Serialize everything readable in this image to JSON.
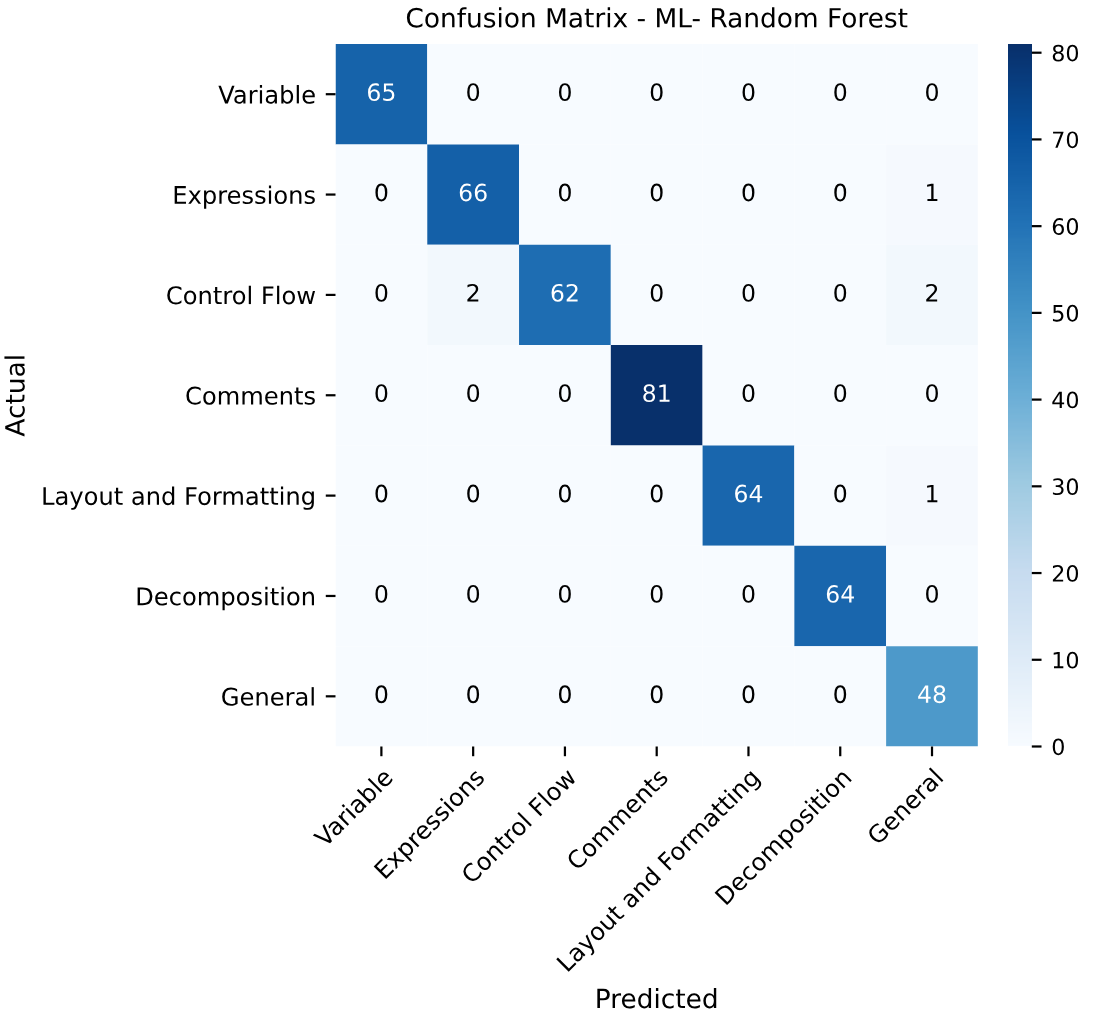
{
  "chart_data": {
    "type": "heatmap",
    "title": "Confusion Matrix - ML- Random Forest",
    "xlabel": "Predicted",
    "ylabel": "Actual",
    "categories": [
      "Variable",
      "Expressions",
      "Control Flow",
      "Comments",
      "Layout and Formatting",
      "Decomposition",
      "General"
    ],
    "y_categories": [
      "Variable",
      "Expressions",
      "Control Flow",
      "Comments",
      "Layout and Formatting",
      "Decomposition",
      "General"
    ],
    "cells": [
      [
        65,
        0,
        0,
        0,
        0,
        0,
        0
      ],
      [
        0,
        66,
        0,
        0,
        0,
        0,
        1
      ],
      [
        0,
        2,
        62,
        0,
        0,
        0,
        2
      ],
      [
        0,
        0,
        0,
        81,
        0,
        0,
        0
      ],
      [
        0,
        0,
        0,
        0,
        64,
        0,
        1
      ],
      [
        0,
        0,
        0,
        0,
        0,
        64,
        0
      ],
      [
        0,
        0,
        0,
        0,
        0,
        0,
        48
      ]
    ],
    "clim": [
      0,
      81
    ],
    "cticks": [
      0,
      10,
      20,
      30,
      40,
      50,
      60,
      70,
      80
    ],
    "data_labels": true
  }
}
